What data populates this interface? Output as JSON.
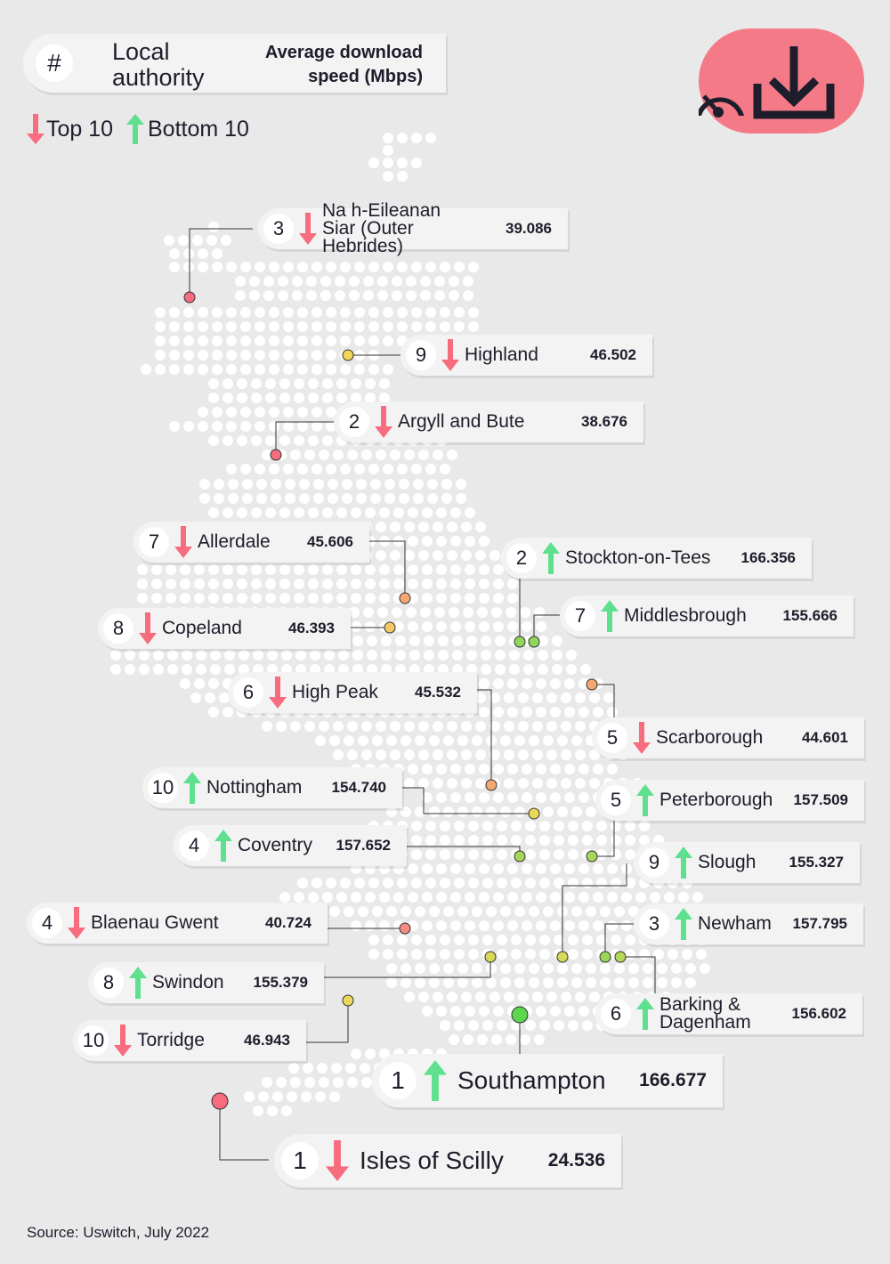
{
  "header": {
    "hash": "#",
    "col_local": "Local authority",
    "col_speed": "Average download speed (Mbps)"
  },
  "legend": {
    "top": "Top 10",
    "bottom": "Bottom 10"
  },
  "colors": {
    "slow": "#f76c7e",
    "fast": "#5ee08e",
    "badge": "#f57a88",
    "text": "#1d1d2b"
  },
  "icons": {
    "badge": [
      "speedometer-icon",
      "download-icon"
    ]
  },
  "entries": [
    {
      "id": "outer-hebrides",
      "rank": "3",
      "direction": "down",
      "name": "Na h-Eileanan Siar (Outer Hebrides)",
      "speed": "39.086"
    },
    {
      "id": "highland",
      "rank": "9",
      "direction": "down",
      "name": "Highland",
      "speed": "46.502"
    },
    {
      "id": "argyll",
      "rank": "2",
      "direction": "down",
      "name": "Argyll and Bute",
      "speed": "38.676"
    },
    {
      "id": "allerdale",
      "rank": "7",
      "direction": "down",
      "name": "Allerdale",
      "speed": "45.606"
    },
    {
      "id": "stockton",
      "rank": "2",
      "direction": "up",
      "name": "Stockton-on-Tees",
      "speed": "166.356"
    },
    {
      "id": "middlesbrough",
      "rank": "7",
      "direction": "up",
      "name": "Middlesbrough",
      "speed": "155.666"
    },
    {
      "id": "copeland",
      "rank": "8",
      "direction": "down",
      "name": "Copeland",
      "speed": "46.393"
    },
    {
      "id": "high-peak",
      "rank": "6",
      "direction": "down",
      "name": "High Peak",
      "speed": "45.532"
    },
    {
      "id": "scarborough",
      "rank": "5",
      "direction": "down",
      "name": "Scarborough",
      "speed": "44.601"
    },
    {
      "id": "nottingham",
      "rank": "10",
      "direction": "up",
      "name": "Nottingham",
      "speed": "154.740"
    },
    {
      "id": "peterborough",
      "rank": "5",
      "direction": "up",
      "name": "Peterborough",
      "speed": "157.509"
    },
    {
      "id": "coventry",
      "rank": "4",
      "direction": "up",
      "name": "Coventry",
      "speed": "157.652"
    },
    {
      "id": "slough",
      "rank": "9",
      "direction": "up",
      "name": "Slough",
      "speed": "155.327"
    },
    {
      "id": "blaenau-gwent",
      "rank": "4",
      "direction": "down",
      "name": "Blaenau Gwent",
      "speed": "40.724"
    },
    {
      "id": "newham",
      "rank": "3",
      "direction": "up",
      "name": "Newham",
      "speed": "157.795"
    },
    {
      "id": "swindon",
      "rank": "8",
      "direction": "up",
      "name": "Swindon",
      "speed": "155.379"
    },
    {
      "id": "barking",
      "rank": "6",
      "direction": "up",
      "name": "Barking & Dagenham",
      "speed": "156.602"
    },
    {
      "id": "torridge",
      "rank": "10",
      "direction": "down",
      "name": "Torridge",
      "speed": "46.943"
    },
    {
      "id": "southampton",
      "rank": "1",
      "direction": "up",
      "name": "Southampton",
      "speed": "166.677"
    },
    {
      "id": "scilly",
      "rank": "1",
      "direction": "down",
      "name": "Isles of Scilly",
      "speed": "24.536"
    }
  ],
  "source": "Source: Uswitch, July 2022"
}
